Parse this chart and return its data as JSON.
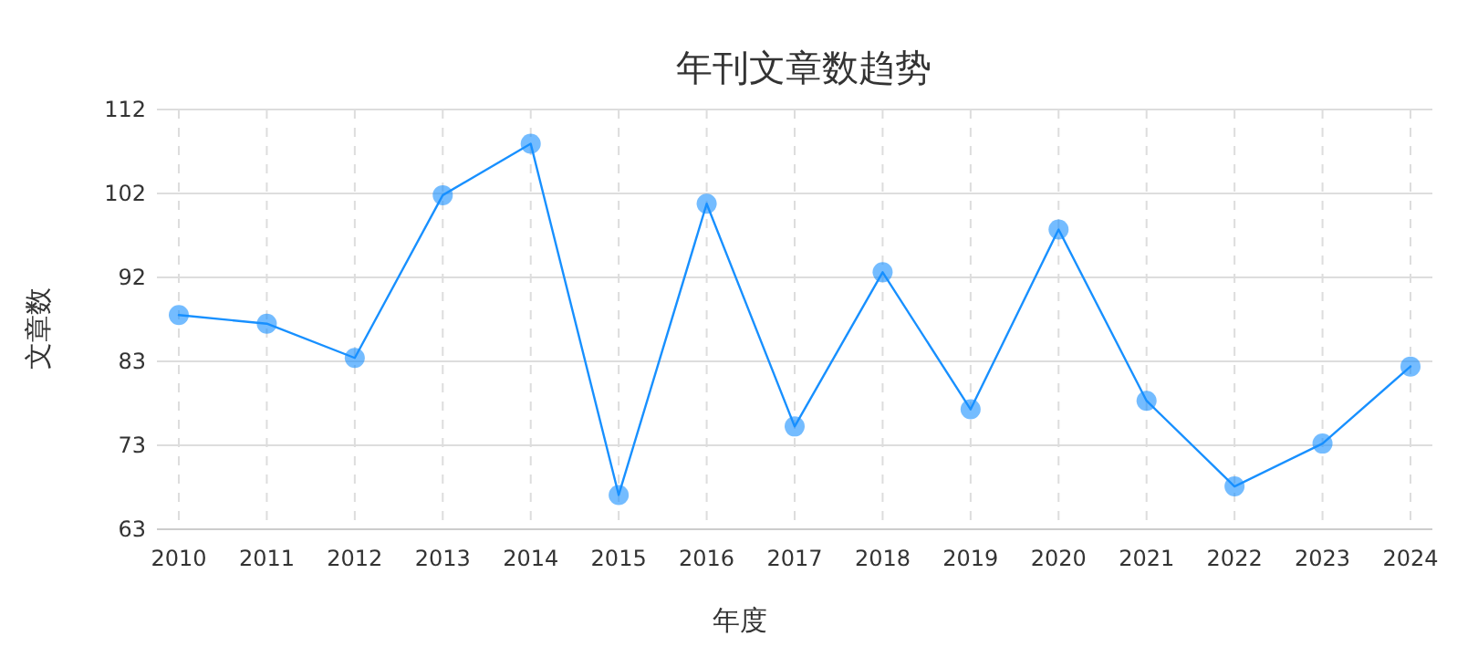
{
  "chart_data": {
    "type": "line",
    "title": "年刊文章数趋势",
    "xlabel": "年度",
    "ylabel": "文章数",
    "categories": [
      "2010",
      "2011",
      "2012",
      "2013",
      "2014",
      "2015",
      "2016",
      "2017",
      "2018",
      "2019",
      "2020",
      "2021",
      "2022",
      "2023",
      "2024"
    ],
    "series": [
      {
        "color": "#1890ff",
        "values": [
          88,
          87,
          83,
          102,
          108,
          67,
          101,
          75,
          93,
          77,
          98,
          78,
          68,
          73,
          82
        ]
      }
    ],
    "ylim": [
      63,
      112
    ],
    "yticks": [
      63,
      {
        "value": 72.8,
        "label": "73"
      },
      {
        "value": 82.6,
        "label": "83"
      },
      {
        "value": 92.4,
        "label": "92"
      },
      {
        "value": 102.2,
        "label": "102"
      },
      112
    ],
    "grid": true,
    "marker": "circle",
    "line_style": "solid"
  }
}
